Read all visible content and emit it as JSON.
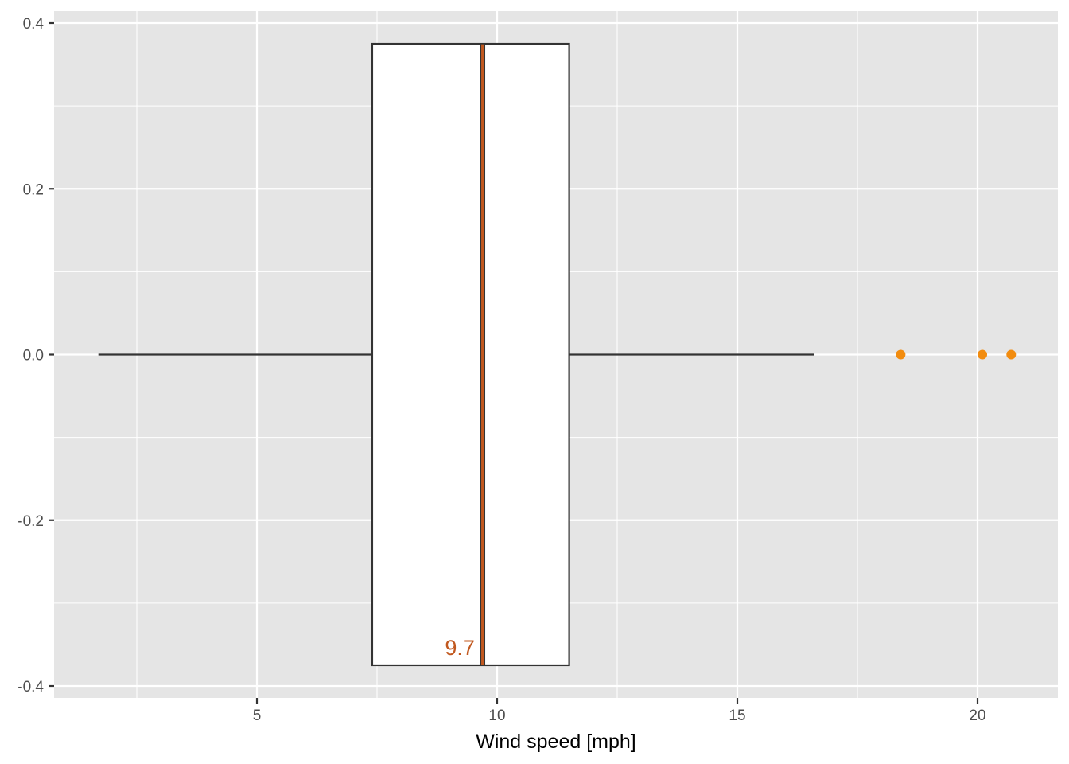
{
  "chart_data": {
    "type": "boxplot",
    "orientation": "horizontal",
    "title": "",
    "xlabel": "Wind speed [mph]",
    "ylabel": "",
    "xlim": [
      1.7,
      21.4
    ],
    "ylim": [
      -0.42,
      0.42
    ],
    "x_ticks": [
      5,
      10,
      15,
      20
    ],
    "x_tick_labels": [
      "5",
      "10",
      "15",
      "20"
    ],
    "y_ticks": [
      -0.4,
      -0.2,
      0.0,
      0.2,
      0.4
    ],
    "y_tick_labels": [
      "-0.4",
      "-0.2",
      "0.0",
      "0.2",
      "0.4"
    ],
    "grid": true,
    "box": {
      "whisker_low": 1.7,
      "q1": 7.4,
      "median": 9.7,
      "q3": 11.5,
      "whisker_high": 16.6,
      "y_bottom": -0.375,
      "y_top": 0.375
    },
    "median_label": "9.7",
    "outliers": [
      18.4,
      20.1,
      20.7
    ],
    "colors": {
      "panel": "#e5e5e5",
      "grid": "#ffffff",
      "box_fill": "#ffffff",
      "box_stroke": "#333333",
      "median_fill": "#c1581f",
      "median_text": "#c1581f",
      "outlier": "#f28c0f"
    }
  }
}
